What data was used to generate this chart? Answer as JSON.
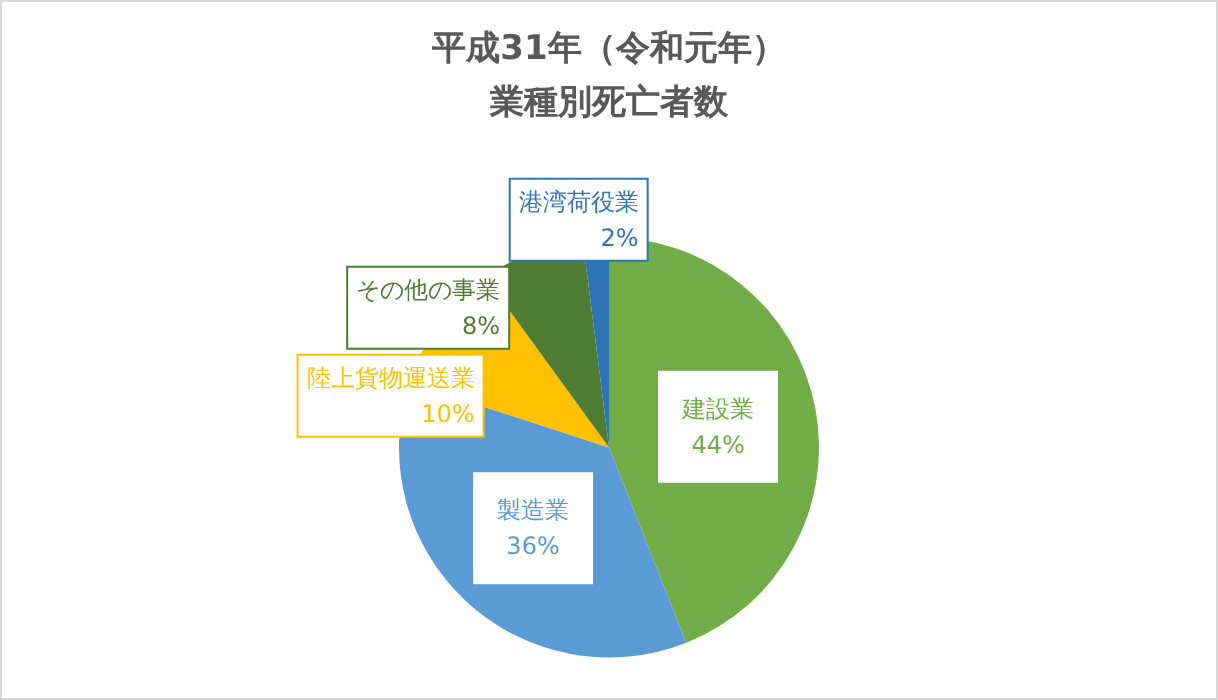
{
  "chart_data": {
    "type": "pie",
    "title": "平成31年（令和元年）",
    "subtitle": "業種別死亡者数",
    "categories": [
      "建設業",
      "製造業",
      "陸上貨物運送業",
      "その他の事業",
      "港湾荷役業"
    ],
    "values": [
      44,
      36,
      10,
      8,
      2
    ],
    "value_labels": [
      "44%",
      "36%",
      "10%",
      "8%",
      "2%"
    ],
    "colors": [
      "#70ad47",
      "#5b9bd5",
      "#ffc000",
      "#4f7d33",
      "#2e75b6"
    ],
    "legend": false
  }
}
